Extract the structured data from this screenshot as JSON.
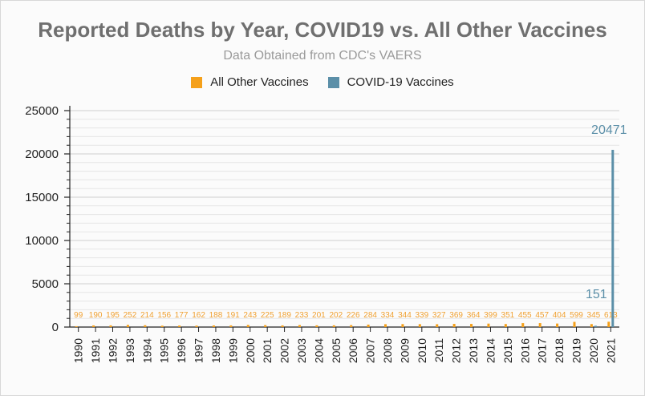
{
  "chart_data": {
    "type": "bar",
    "title": "Reported Deaths by Year, COVID19 vs. All Other Vaccines",
    "subtitle": "Data Obtained from CDC's VAERS",
    "xlabel": "",
    "ylabel": "",
    "ylim": [
      0,
      25000
    ],
    "yticks": [
      0,
      5000,
      10000,
      15000,
      20000,
      25000
    ],
    "grid": true,
    "legend_position": "top-center",
    "categories": [
      "1990",
      "1991",
      "1992",
      "1993",
      "1994",
      "1995",
      "1996",
      "1997",
      "1998",
      "1999",
      "2000",
      "2001",
      "2002",
      "2003",
      "2004",
      "2005",
      "2006",
      "2007",
      "2008",
      "2009",
      "2010",
      "2011",
      "2012",
      "2013",
      "2014",
      "2015",
      "2016",
      "2017",
      "2018",
      "2019",
      "2020",
      "2021"
    ],
    "series": [
      {
        "name": "All Other Vaccines",
        "color": "#f5a01a",
        "label_color": "#f0a030",
        "values": [
          99,
          190,
          195,
          252,
          214,
          156,
          177,
          162,
          188,
          191,
          243,
          225,
          189,
          233,
          201,
          202,
          226,
          284,
          334,
          344,
          339,
          327,
          369,
          364,
          399,
          351,
          455,
          457,
          404,
          599,
          345,
          613
        ]
      },
      {
        "name": "COVID-19 Vaccines",
        "color": "#5b8fa8",
        "label_color": "#5b8fa8",
        "values": [
          null,
          null,
          null,
          null,
          null,
          null,
          null,
          null,
          null,
          null,
          null,
          null,
          null,
          null,
          null,
          null,
          null,
          null,
          null,
          null,
          null,
          null,
          null,
          null,
          null,
          null,
          null,
          null,
          null,
          null,
          151,
          20471
        ]
      }
    ]
  }
}
